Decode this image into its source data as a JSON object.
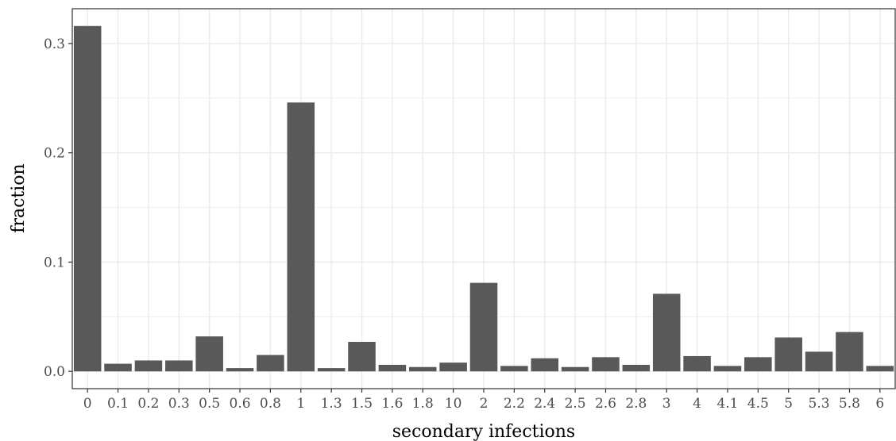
{
  "chart_data": {
    "type": "bar",
    "xlabel": "secondary infections",
    "ylabel": "fraction",
    "categories": [
      "0",
      "0.1",
      "0.2",
      "0.3",
      "0.5",
      "0.6",
      "0.8",
      "1",
      "1.3",
      "1.5",
      "1.6",
      "1.8",
      "10",
      "2",
      "2.2",
      "2.4",
      "2.5",
      "2.6",
      "2.8",
      "3",
      "4",
      "4.1",
      "4.5",
      "5",
      "5.3",
      "5.8",
      "6"
    ],
    "values": [
      0.316,
      0.007,
      0.01,
      0.01,
      0.032,
      0.003,
      0.015,
      0.246,
      0.003,
      0.027,
      0.006,
      0.004,
      0.008,
      0.081,
      0.005,
      0.012,
      0.004,
      0.013,
      0.006,
      0.071,
      0.014,
      0.005,
      0.013,
      0.031,
      0.018,
      0.036,
      0.005
    ],
    "ylim": [
      -0.0158,
      0.3318
    ],
    "yticks": [
      0.0,
      0.1,
      0.2,
      0.3
    ],
    "ytick_labels": [
      "0.0",
      "0.1",
      "0.2",
      "0.3"
    ],
    "grid": true,
    "bar_color": "#595959",
    "grid_color": "#ebebeb",
    "panel_border_color": "#333333"
  }
}
